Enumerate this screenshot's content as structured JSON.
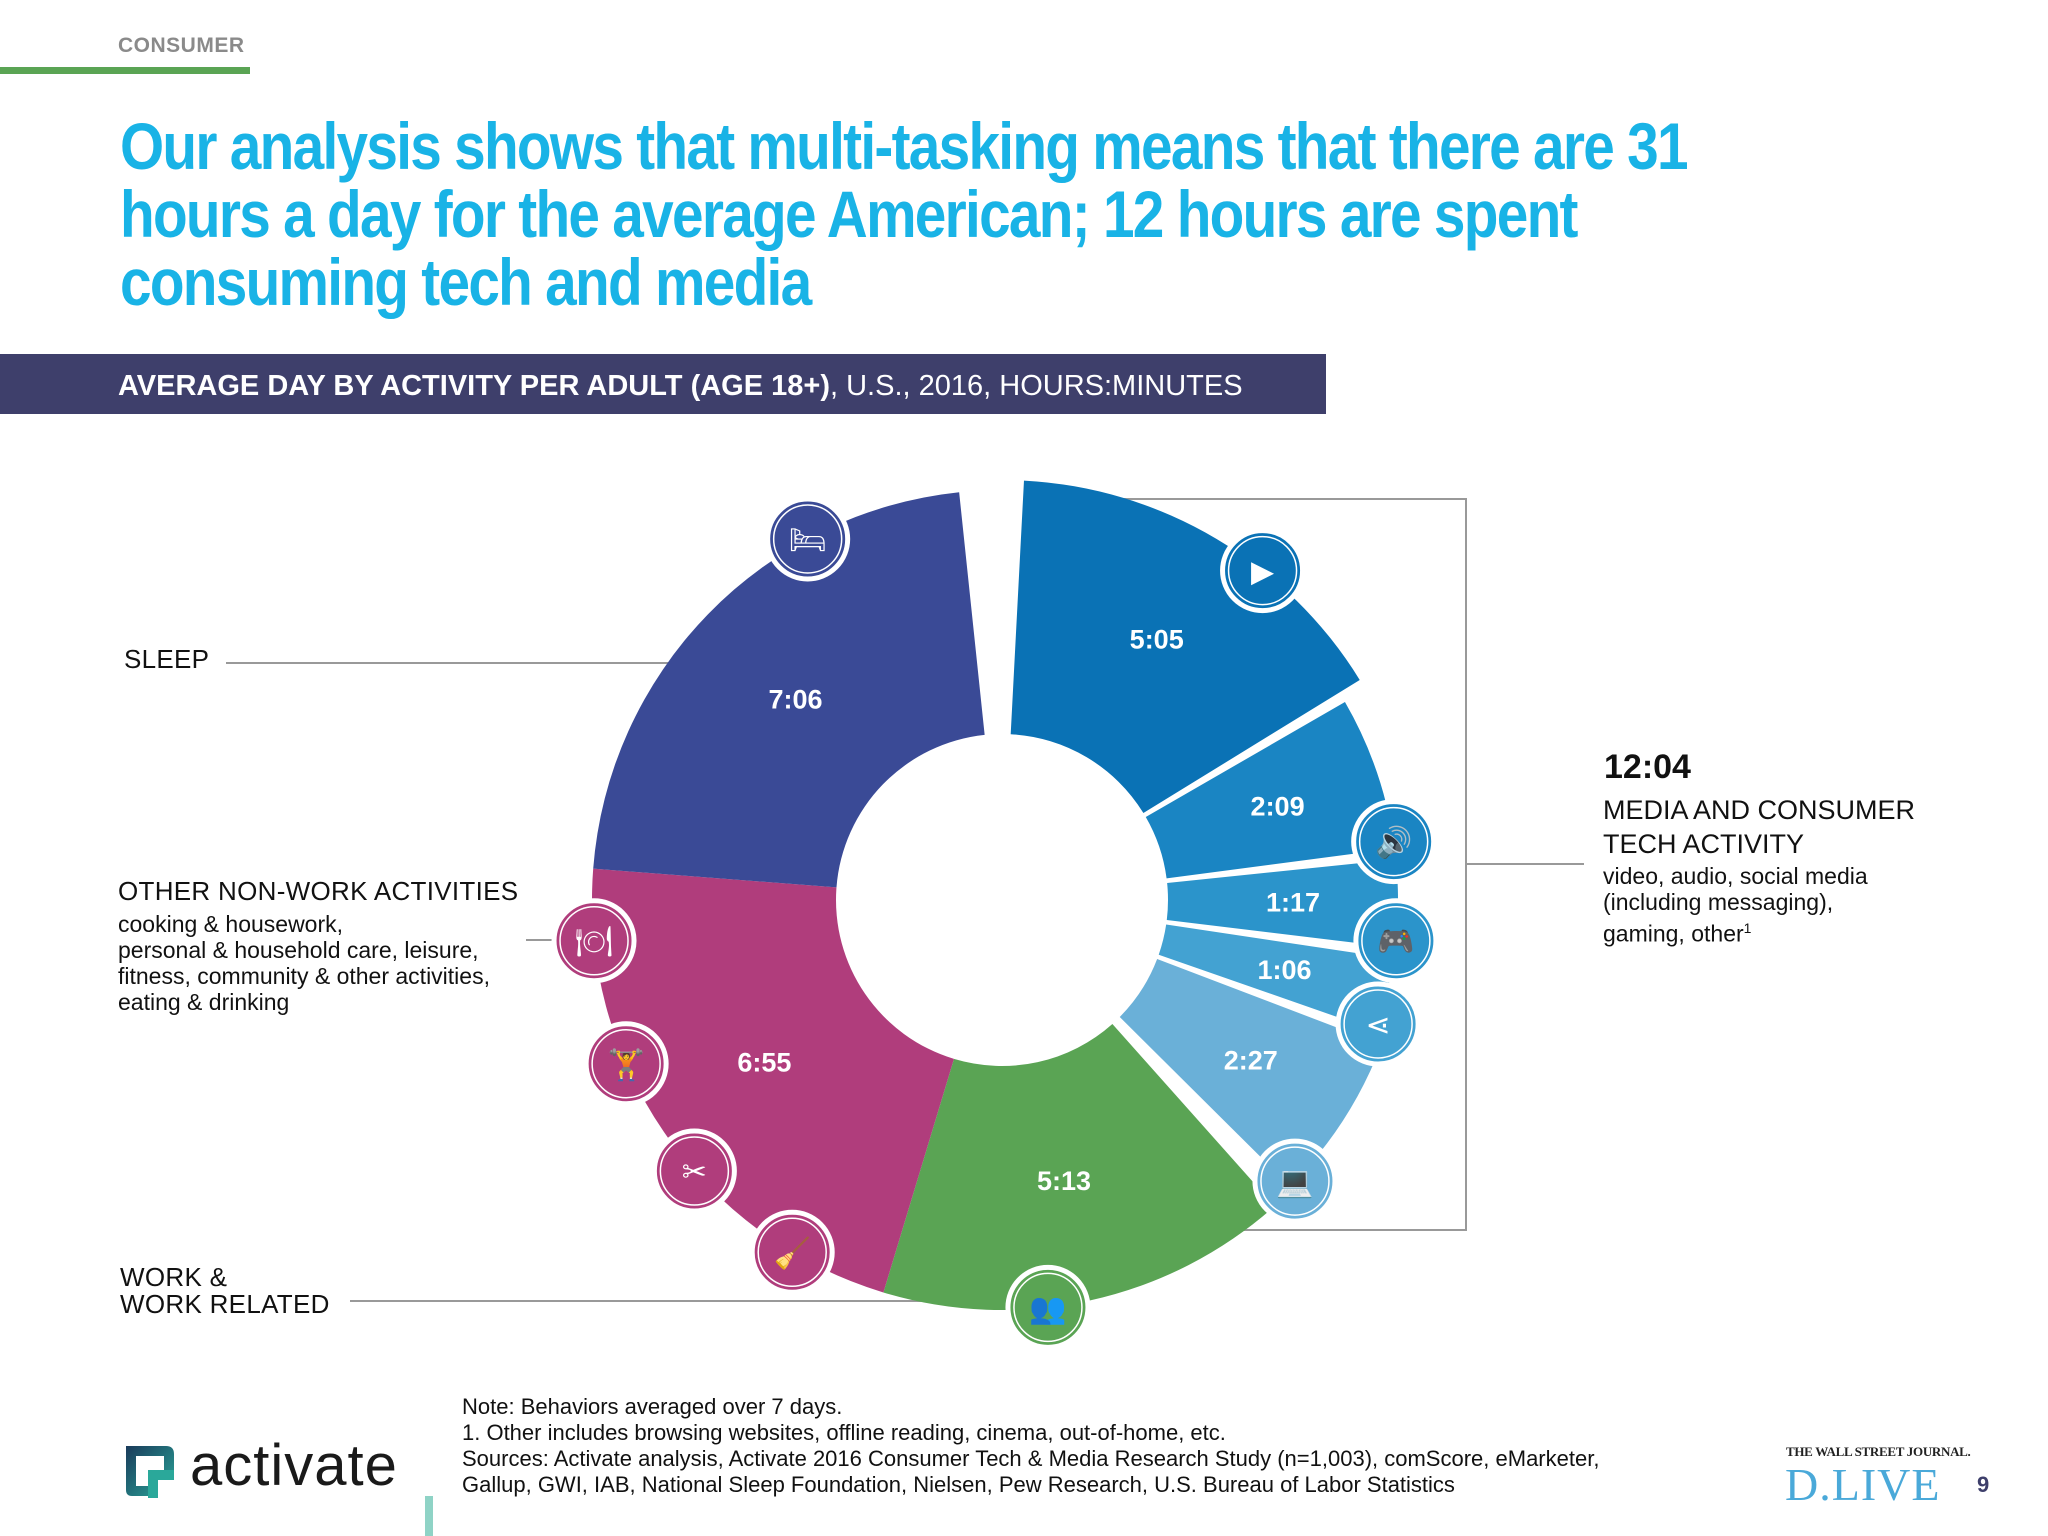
{
  "header": {
    "section": "CONSUMER",
    "headline": "Our analysis shows that multi-tasking means that there are 31 hours a day for the average American; 12 hours are spent consuming tech and media"
  },
  "banner": {
    "bold": "AVERAGE DAY BY ACTIVITY PER ADULT (AGE 18+)",
    "rest": ", U.S., 2016, HOURS:MINUTES"
  },
  "labels": {
    "sleep": "SLEEP",
    "other_title": "OTHER NON-WORK ACTIVITIES",
    "other_sub": "cooking & housework,\npersonal & household care, leisure,\nfitness, community & other activities,\neating & drinking",
    "work_line1": "WORK &",
    "work_line2": "WORK RELATED",
    "media_total": "12:04",
    "media_title_1": "MEDIA AND CONSUMER",
    "media_title_2": "TECH ACTIVITY",
    "media_sub_1": "video, audio, social media",
    "media_sub_2": "(including messaging),",
    "media_sub_3": "gaming, other",
    "media_sub_sup": "1"
  },
  "chart_data": {
    "type": "pie",
    "title": "AVERAGE DAY BY ACTIVITY PER ADULT (AGE 18+), U.S., 2016, HOURS:MINUTES",
    "slices": [
      {
        "label": "5:05",
        "minutes": 305,
        "color": "#0a72b5",
        "icon": "video-icon",
        "group": "media"
      },
      {
        "label": "2:09",
        "minutes": 129,
        "color": "#1a85c3",
        "icon": "audio-icon",
        "group": "media"
      },
      {
        "label": "1:17",
        "minutes": 77,
        "color": "#2b94cb",
        "icon": "gamepad-icon",
        "group": "media"
      },
      {
        "label": "1:06",
        "minutes": 66,
        "color": "#43a2d2",
        "icon": "share-icon",
        "group": "media"
      },
      {
        "label": "2:27",
        "minutes": 147,
        "color": "#6ab0d8",
        "icon": "laptop-icon",
        "group": "media"
      },
      {
        "label": "5:13",
        "minutes": 313,
        "color": "#5aa454",
        "icon": "meeting-icon",
        "group": "work"
      },
      {
        "label": "6:55",
        "minutes": 415,
        "color": "#b03d7c",
        "icon": "housework-icon",
        "group": "other"
      },
      {
        "label": "7:06",
        "minutes": 426,
        "color": "#3a4a96",
        "icon": "bed-icon",
        "group": "sleep"
      }
    ],
    "other_icons": [
      "cleaning-icon",
      "grooming-icon",
      "fitness-icon",
      "dining-icon"
    ],
    "total_minutes_per_day": 1878
  },
  "footer": {
    "note": "Note: Behaviors averaged over 7 days.",
    "footnote": "1. Other includes browsing websites, offline reading, cinema, out-of-home, etc.",
    "sources_1": "Sources: Activate analysis, Activate 2016 Consumer Tech & Media Research Study (n=1,003), comScore, eMarketer,",
    "sources_2": "Gallup, GWI, IAB, National Sleep Foundation, Nielsen, Pew Research, U.S. Bureau of Labor Statistics",
    "brand": "activate",
    "wsj_line": "THE WALL STREET JOURNAL.",
    "dlive": "D.LIVE",
    "page": "9"
  }
}
